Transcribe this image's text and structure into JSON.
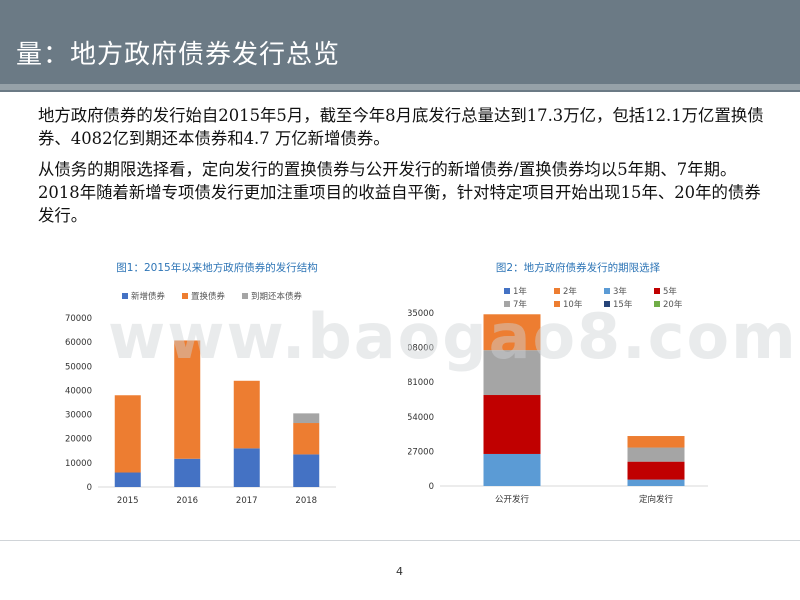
{
  "header": {
    "title": "量：地方政府债券发行总览"
  },
  "body": {
    "paragraph1": "地方政府债券的发行始自2015年5月，截至今年8月底发行总量达到17.3万亿，包括12.1万亿置换债券、4082亿到期还本债券和4.7 万亿新增债券。",
    "paragraph2": "从债务的期限选择看，定向发行的置换债券与公开发行的新增债券/置换债券均以5年期、7年期。2018年随着新增专项债发行更加注重项目的收益自平衡，针对特定项目开始出现15年、20年的债券发行。"
  },
  "watermark": "www.baogao8.com",
  "page_number": "4",
  "colors": {
    "header_bg": "#6b7a85",
    "chart_title": "#2e75b6"
  },
  "chart_data": [
    {
      "type": "bar",
      "stacked": true,
      "title": "图1：2015年以来地方政府债券的发行结构",
      "categories": [
        "2015",
        "2016",
        "2017",
        "2018"
      ],
      "series": [
        {
          "name": "新增债券",
          "color": "#4472c4",
          "values": [
            6000,
            11700,
            16000,
            13500
          ]
        },
        {
          "name": "置换债券",
          "color": "#ed7d31",
          "values": [
            32000,
            49000,
            28000,
            13000
          ]
        },
        {
          "name": "到期还本债券",
          "color": "#a5a5a5",
          "values": [
            0,
            0,
            0,
            4000
          ]
        }
      ],
      "ylim": [
        0,
        70000
      ],
      "yticks": [
        "0",
        "10000",
        "20000",
        "30000",
        "40000",
        "50000",
        "60000",
        "70000"
      ],
      "ytick_values": [
        0,
        10000,
        20000,
        30000,
        40000,
        50000,
        60000,
        70000
      ],
      "legend": "top",
      "grid": false
    },
    {
      "type": "bar",
      "stacked": true,
      "title": "图2：地方政府债券发行的期限选择",
      "categories": [
        "公开发行",
        "定向发行"
      ],
      "series": [
        {
          "name": "1年",
          "color": "#4472c4",
          "values": [
            0,
            0
          ]
        },
        {
          "name": "2年",
          "color": "#ed7d31",
          "values": [
            0,
            0
          ]
        },
        {
          "name": "3年",
          "color": "#5b9bd5",
          "values": [
            25000,
            5000
          ]
        },
        {
          "name": "5年",
          "color": "#c00000",
          "values": [
            46000,
            14000
          ]
        },
        {
          "name": "7年",
          "color": "#a5a5a5",
          "values": [
            35000,
            11000
          ]
        },
        {
          "name": "10年",
          "color": "#ed7d31",
          "values": [
            28000,
            9000
          ]
        },
        {
          "name": "15年",
          "color": "#264478",
          "values": [
            0,
            0
          ]
        },
        {
          "name": "20年",
          "color": "#70ad47",
          "values": [
            0,
            0
          ]
        }
      ],
      "ylim": [
        0,
        135000
      ],
      "yticks": [
        "0",
        "27000",
        "54000",
        "81000",
        "108000",
        "135000"
      ],
      "ytick_values": [
        0,
        27000,
        54000,
        81000,
        108000,
        135000
      ],
      "legend": "top",
      "grid": false
    }
  ]
}
